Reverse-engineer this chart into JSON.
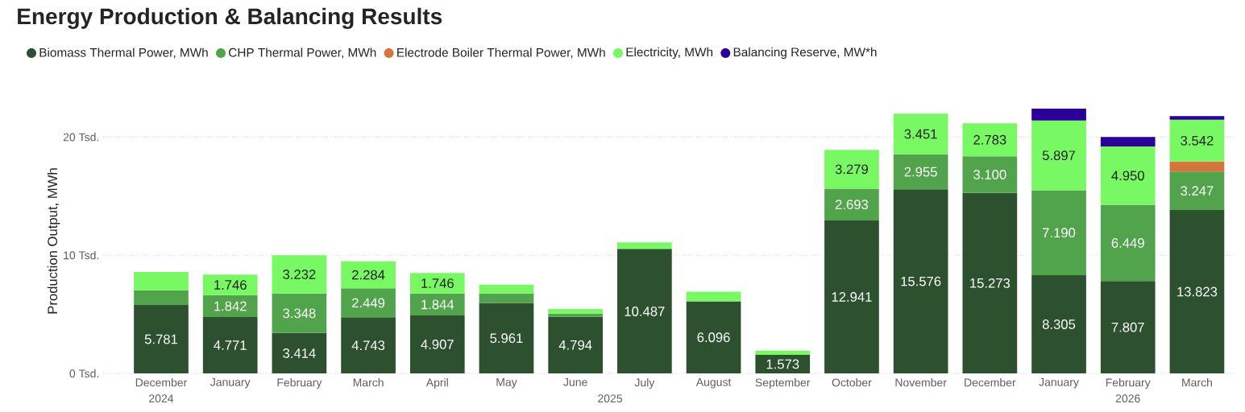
{
  "chart_data": {
    "type": "bar",
    "stacked": true,
    "title": "Energy Production & Balancing Results",
    "ylabel": "Production Output, MWh",
    "categories": [
      "December",
      "January",
      "February",
      "March",
      "April",
      "May",
      "June",
      "July",
      "August",
      "September",
      "October",
      "November",
      "December",
      "January",
      "February",
      "March"
    ],
    "annotations": [
      "2024",
      "2025",
      "2026"
    ],
    "ylim": [
      0,
      22.4
    ],
    "yticks": [
      {
        "value": 0,
        "label": "0 Tsd."
      },
      {
        "value": 10,
        "label": "10 Tsd."
      },
      {
        "value": 20,
        "label": "20 Tsd."
      }
    ],
    "grid": "y",
    "legend": "top left",
    "series": [
      {
        "name": "Biomass Thermal Power, MWh",
        "color": "#2d502e",
        "values": [
          5.781,
          4.771,
          3.414,
          4.743,
          4.907,
          5.961,
          4.794,
          10.487,
          6.096,
          1.573,
          12.941,
          15.576,
          15.273,
          8.305,
          7.807,
          13.823
        ],
        "value_labels": [
          "5.781",
          "4.771",
          "3.414",
          "4.743",
          "4.907",
          "5.961",
          "4.794",
          "10.487",
          "6.096",
          "1.573",
          "12.941",
          "15.576",
          "15.273",
          "8.305",
          "7.807",
          "13.823"
        ]
      },
      {
        "name": "CHP Thermal Power, MWh",
        "color": "#52a44c",
        "values": [
          1.25,
          1.842,
          3.348,
          2.449,
          1.844,
          0.8,
          0.26,
          0.08,
          null,
          null,
          2.693,
          2.955,
          3.1,
          7.19,
          6.449,
          3.247
        ],
        "value_labels": [
          null,
          "1.842",
          "3.348",
          "2.449",
          "1.844",
          null,
          null,
          null,
          null,
          null,
          "2.693",
          "2.955",
          "3.100",
          "7.190",
          "6.449",
          "3.247"
        ]
      },
      {
        "name": "Electrode Boiler Thermal Power, MWh",
        "color": "#d5743c",
        "values": [
          null,
          null,
          null,
          null,
          null,
          null,
          null,
          null,
          null,
          null,
          null,
          null,
          null,
          null,
          null,
          0.85
        ]
      },
      {
        "name": "Electricity, MWh",
        "color": "#78f862",
        "values": [
          1.55,
          1.746,
          3.232,
          2.284,
          1.746,
          0.75,
          0.39,
          0.52,
          0.82,
          0.35,
          3.279,
          3.451,
          2.783,
          5.897,
          4.95,
          3.542
        ],
        "value_labels": [
          null,
          "1.746",
          "3.232",
          "2.284",
          "1.746",
          null,
          null,
          null,
          null,
          null,
          "3.279",
          "3.451",
          "2.783",
          "5.897",
          "4.950",
          "3.542"
        ]
      },
      {
        "name": "Balancing Reserve, MW*h",
        "color": "#2b0099",
        "values": [
          null,
          null,
          null,
          null,
          null,
          null,
          null,
          null,
          null,
          null,
          null,
          null,
          null,
          1.0,
          0.8,
          0.3
        ]
      }
    ]
  }
}
